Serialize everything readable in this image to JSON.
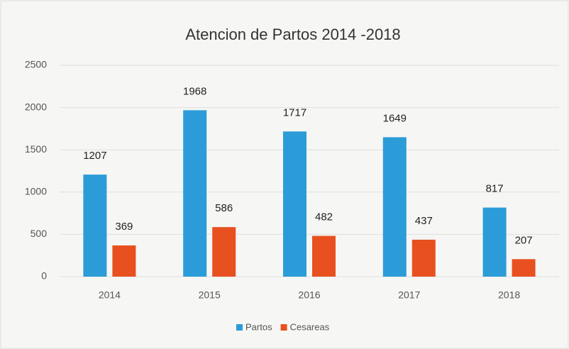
{
  "chart_data": {
    "type": "bar",
    "title": "Atencion de Partos 2014 -2018",
    "categories": [
      "2014",
      "2015",
      "2016",
      "2017",
      "2018"
    ],
    "series": [
      {
        "name": "Partos",
        "color": "#2b9cd8",
        "values": [
          1207,
          1968,
          1717,
          1649,
          817
        ]
      },
      {
        "name": "Cesareas",
        "color": "#e8501f",
        "values": [
          369,
          586,
          482,
          437,
          207
        ]
      }
    ],
    "ylim": [
      0,
      2500
    ],
    "yticks": [
      0,
      500,
      1000,
      1500,
      2000,
      2500
    ],
    "grid": true,
    "legend": "bottom"
  }
}
